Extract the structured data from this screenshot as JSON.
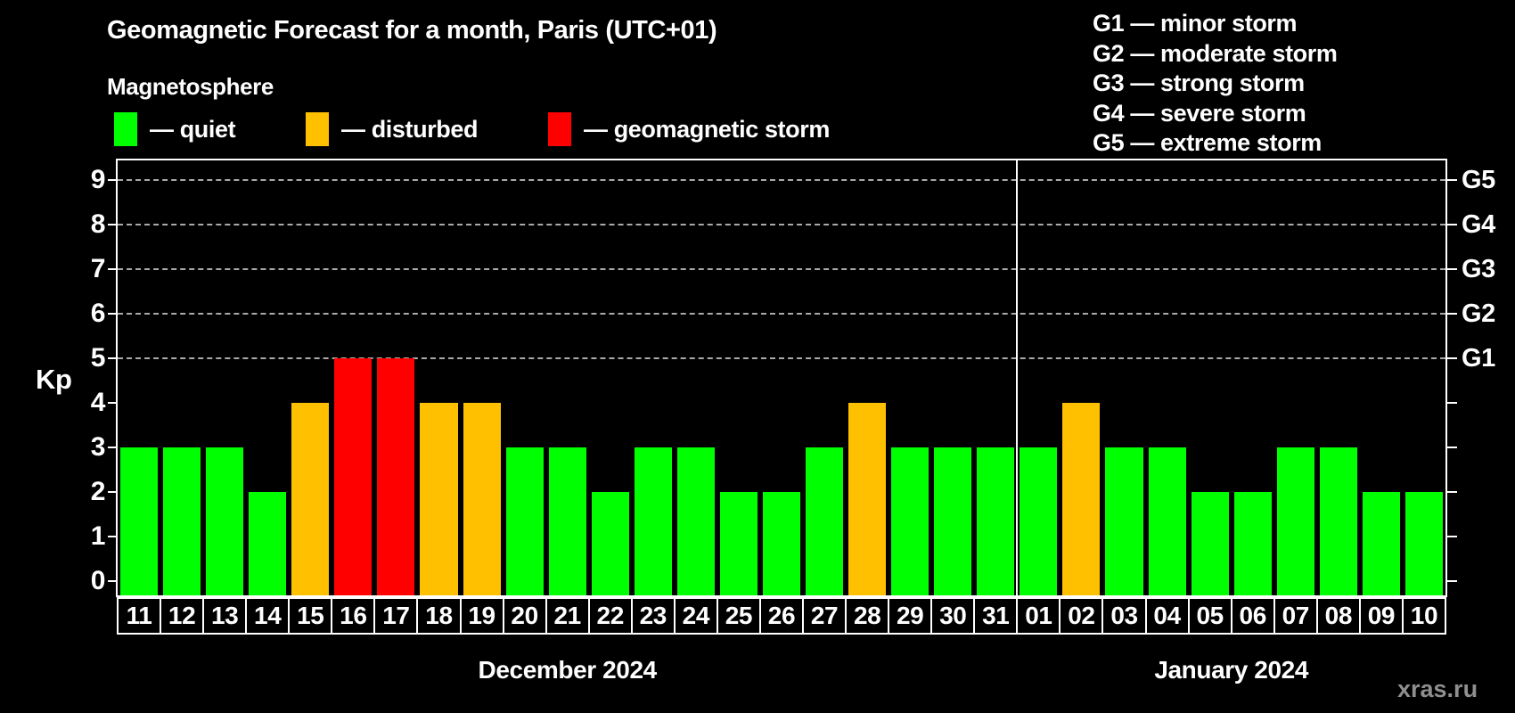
{
  "header": {
    "title": "Geomagnetic Forecast for a month, Paris (UTC+01)",
    "subtitle": "Magnetosphere"
  },
  "legend": {
    "items": [
      {
        "key": "quiet",
        "label": "— quiet",
        "color": "#00ff00"
      },
      {
        "key": "disturbed",
        "label": "— disturbed",
        "color": "#ffc000"
      },
      {
        "key": "storm",
        "label": "— geomagnetic storm",
        "color": "#ff0000"
      }
    ]
  },
  "storm_scale_legend": [
    "G1 — minor storm",
    "G2 — moderate storm",
    "G3 — strong storm",
    "G4 — severe storm",
    "G5 — extreme storm"
  ],
  "watermark": "xras.ru",
  "chart_data": {
    "type": "bar",
    "title": "Geomagnetic Forecast for a month, Paris (UTC+01)",
    "ylabel": "Kp",
    "ylim": [
      0,
      9.5
    ],
    "yticks": [
      0,
      1,
      2,
      3,
      4,
      5,
      6,
      7,
      8,
      9
    ],
    "gridlines_at": [
      5,
      6,
      7,
      8,
      9
    ],
    "grid": "dashed horizontal at G-storm levels only",
    "legend_position": "top-left",
    "right_axis": [
      {
        "kp": 5,
        "label": "G1"
      },
      {
        "kp": 6,
        "label": "G2"
      },
      {
        "kp": 7,
        "label": "G3"
      },
      {
        "kp": 8,
        "label": "G4"
      },
      {
        "kp": 9,
        "label": "G5"
      }
    ],
    "months": [
      {
        "label": "December 2024",
        "days": 21
      },
      {
        "label": "January 2024",
        "days": 10
      }
    ],
    "categories": [
      "11",
      "12",
      "13",
      "14",
      "15",
      "16",
      "17",
      "18",
      "19",
      "20",
      "21",
      "22",
      "23",
      "24",
      "25",
      "26",
      "27",
      "28",
      "29",
      "30",
      "31",
      "01",
      "02",
      "03",
      "04",
      "05",
      "06",
      "07",
      "08",
      "09",
      "10"
    ],
    "values": [
      3,
      3,
      3,
      2,
      4,
      5,
      5,
      4,
      4,
      3,
      3,
      2,
      3,
      3,
      2,
      2,
      3,
      4,
      3,
      3,
      3,
      3,
      4,
      3,
      3,
      2,
      2,
      3,
      3,
      2,
      2
    ],
    "statuses": [
      "quiet",
      "quiet",
      "quiet",
      "quiet",
      "disturbed",
      "storm",
      "storm",
      "disturbed",
      "disturbed",
      "quiet",
      "quiet",
      "quiet",
      "quiet",
      "quiet",
      "quiet",
      "quiet",
      "quiet",
      "disturbed",
      "quiet",
      "quiet",
      "quiet",
      "quiet",
      "disturbed",
      "quiet",
      "quiet",
      "quiet",
      "quiet",
      "quiet",
      "quiet",
      "quiet",
      "quiet"
    ],
    "status_colors": {
      "quiet": "#00ff00",
      "disturbed": "#ffc000",
      "storm": "#ff0000"
    }
  }
}
